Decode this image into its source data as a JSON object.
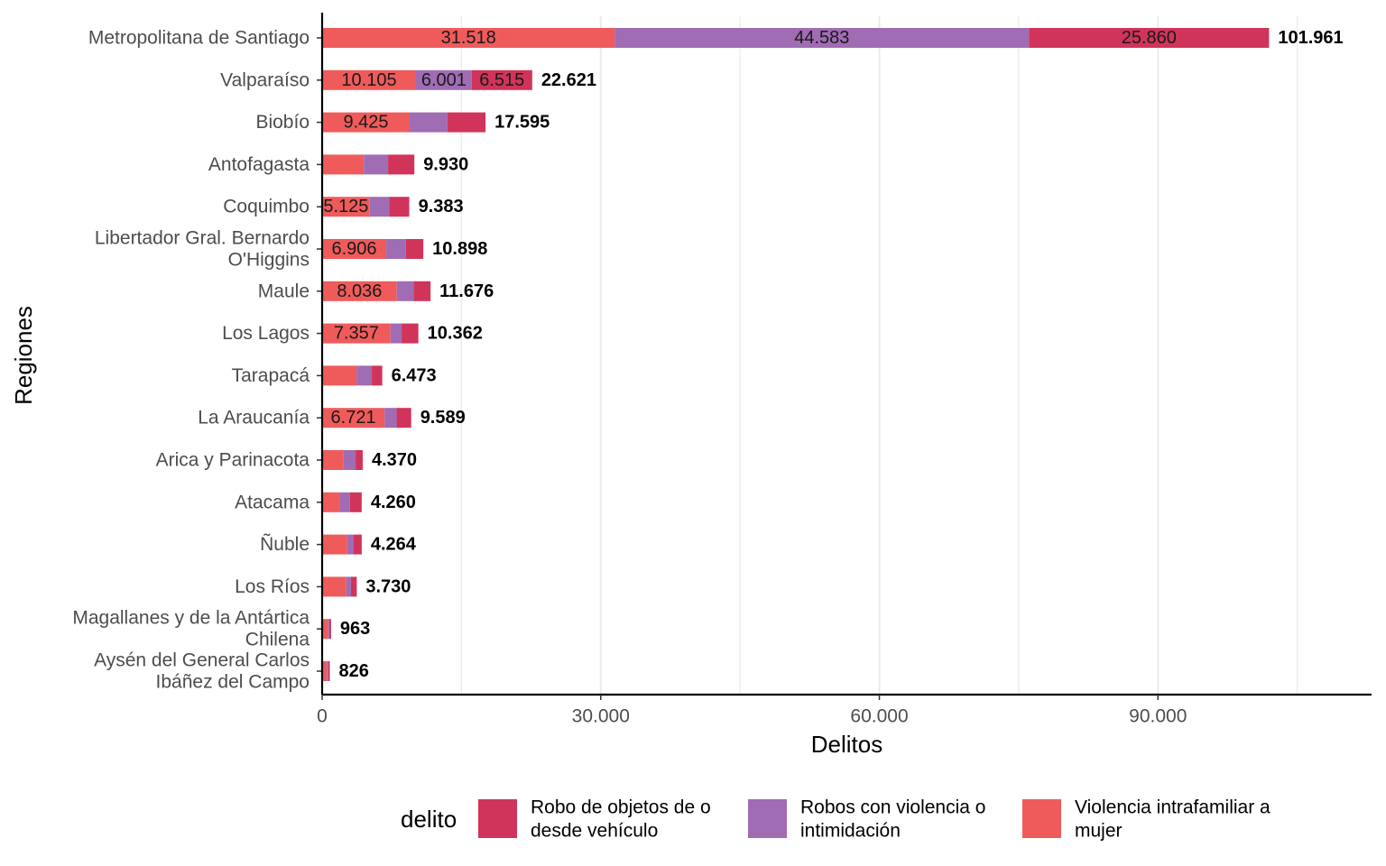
{
  "chart_data": {
    "type": "bar",
    "orientation": "horizontal",
    "stacked": true,
    "xlabel": "Delitos",
    "ylabel": "Regiones",
    "xlim": [
      0,
      113000
    ],
    "x_ticks": [
      0,
      30000,
      60000,
      90000
    ],
    "x_tick_labels": [
      "0",
      "30.000",
      "60.000",
      "90.000"
    ],
    "grid": "vertical",
    "legend": {
      "title": "delito",
      "position": "bottom",
      "items": [
        {
          "label_lines": [
            "Robo de objetos de o",
            "desde vehículo"
          ],
          "color": "#D1345B"
        },
        {
          "label_lines": [
            "Robos con violencia o",
            "intimidación"
          ],
          "color": "#A06CB4"
        },
        {
          "label_lines": [
            "Violencia intrafamiliar a",
            "mujer"
          ],
          "color": "#EF5B5B"
        }
      ]
    },
    "categories": [
      {
        "label_lines": [
          "Metropolitana de Santiago"
        ],
        "total": "101.961"
      },
      {
        "label_lines": [
          "Valparaíso"
        ],
        "total": "22.621"
      },
      {
        "label_lines": [
          "Biobío"
        ],
        "total": "17.595"
      },
      {
        "label_lines": [
          "Antofagasta"
        ],
        "total": "9.930"
      },
      {
        "label_lines": [
          "Coquimbo"
        ],
        "total": "9.383"
      },
      {
        "label_lines": [
          "Libertador Gral. Bernardo",
          "O'Higgins"
        ],
        "total": "10.898"
      },
      {
        "label_lines": [
          "Maule"
        ],
        "total": "11.676"
      },
      {
        "label_lines": [
          "Los Lagos"
        ],
        "total": "10.362"
      },
      {
        "label_lines": [
          "Tarapacá"
        ],
        "total": "6.473"
      },
      {
        "label_lines": [
          "La Araucanía"
        ],
        "total": "9.589"
      },
      {
        "label_lines": [
          "Arica y Parinacota"
        ],
        "total": "4.370"
      },
      {
        "label_lines": [
          "Atacama"
        ],
        "total": "4.260"
      },
      {
        "label_lines": [
          "Ñuble"
        ],
        "total": "4.264"
      },
      {
        "label_lines": [
          "Los Ríos"
        ],
        "total": "3.730"
      },
      {
        "label_lines": [
          "Magallanes y de la Antártica",
          "Chilena"
        ],
        "total": "963"
      },
      {
        "label_lines": [
          "Aysén del General Carlos",
          "Ibáñez del Campo"
        ],
        "total": "826"
      }
    ],
    "series": [
      {
        "name": "Violencia intrafamiliar a mujer",
        "color": "#EF5B5B",
        "values": [
          31518,
          10105,
          9425,
          4500,
          5125,
          6906,
          8036,
          7357,
          3700,
          6721,
          2300,
          1900,
          2700,
          2600,
          600,
          500
        ],
        "labels": [
          "31.518",
          "10.105",
          "9.425",
          "",
          "5.125",
          "6.906",
          "8.036",
          "7.357",
          "",
          "6.721",
          "",
          "",
          "",
          "",
          "",
          ""
        ]
      },
      {
        "name": "Robos con violencia o intimidación",
        "color": "#A06CB4",
        "values": [
          44583,
          6001,
          4070,
          2600,
          2100,
          2100,
          1800,
          1200,
          1650,
          1300,
          1300,
          1100,
          700,
          500,
          150,
          150
        ],
        "labels": [
          "44.583",
          "6.001",
          "",
          "",
          "",
          "",
          "",
          "",
          "",
          "",
          "",
          "",
          "",
          "",
          "",
          ""
        ]
      },
      {
        "name": "Robo de objetos de o desde vehículo",
        "color": "#D1345B",
        "values": [
          25860,
          6515,
          4100,
          2830,
          2158,
          1892,
          1840,
          1805,
          1123,
          1568,
          770,
          1260,
          864,
          630,
          213,
          176
        ],
        "labels": [
          "25.860",
          "6.515",
          "",
          "",
          "",
          "",
          "",
          "",
          "",
          "",
          "",
          "",
          "",
          "",
          "",
          ""
        ]
      }
    ]
  }
}
